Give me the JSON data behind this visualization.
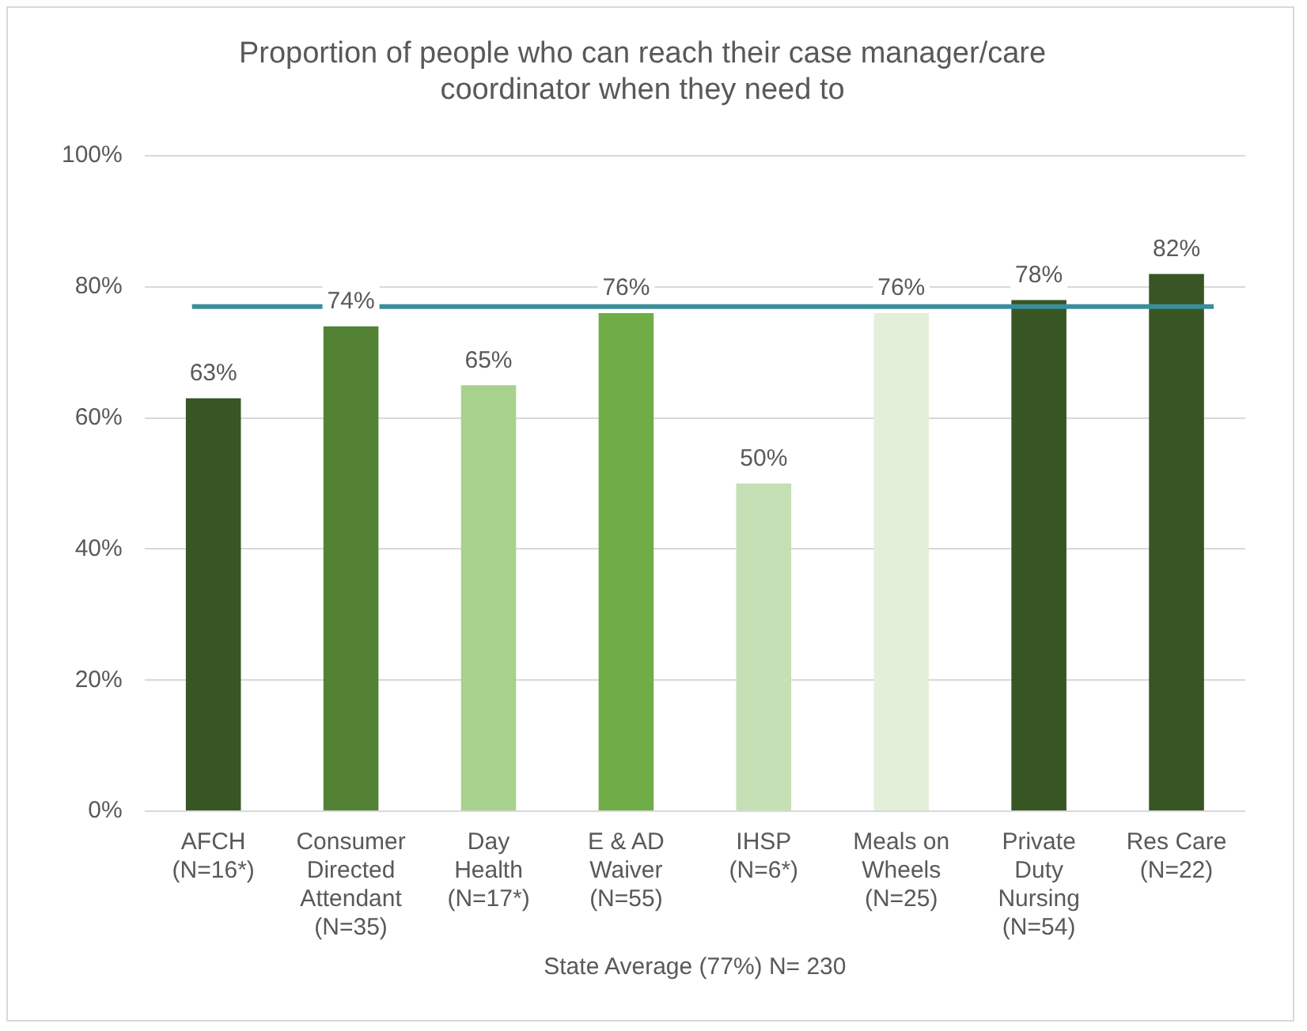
{
  "chart_data": {
    "type": "bar",
    "title": "Proportion of people who can reach their case manager/care\ncoordinator when they need to",
    "xlabel": "State Average (77%) N= 230",
    "categories": [
      "AFCH\n(N=16*)",
      "Consumer\nDirected\nAttendant\n(N=35)",
      "Day\nHealth\n(N=17*)",
      "E & AD\nWaiver\n(N=55)",
      "IHSP\n(N=6*)",
      "Meals on\nWheels\n(N=25)",
      "Private\nDuty\nNursing\n(N=54)",
      "Res Care\n(N=22)"
    ],
    "values": [
      63,
      74,
      65,
      76,
      50,
      76,
      78,
      82
    ],
    "value_labels": [
      "63%",
      "74%",
      "65%",
      "76%",
      "50%",
      "76%",
      "78%",
      "82%"
    ],
    "colors": [
      "#375623",
      "#548235",
      "#a9d18e",
      "#70ad47",
      "#c5e0b4",
      "#e2f0d9",
      "#375623",
      "#375623"
    ],
    "ylim": [
      0,
      100
    ],
    "yticks": [
      {
        "value": 0,
        "label": "0%"
      },
      {
        "value": 20,
        "label": "20%"
      },
      {
        "value": 40,
        "label": "40%"
      },
      {
        "value": 60,
        "label": "60%"
      },
      {
        "value": 80,
        "label": "80%"
      },
      {
        "value": 100,
        "label": "100%"
      }
    ],
    "ref_lines": [
      {
        "axis": "y",
        "value": 77,
        "color": "#3a8e9c"
      }
    ],
    "grid": "y",
    "legend": false
  }
}
